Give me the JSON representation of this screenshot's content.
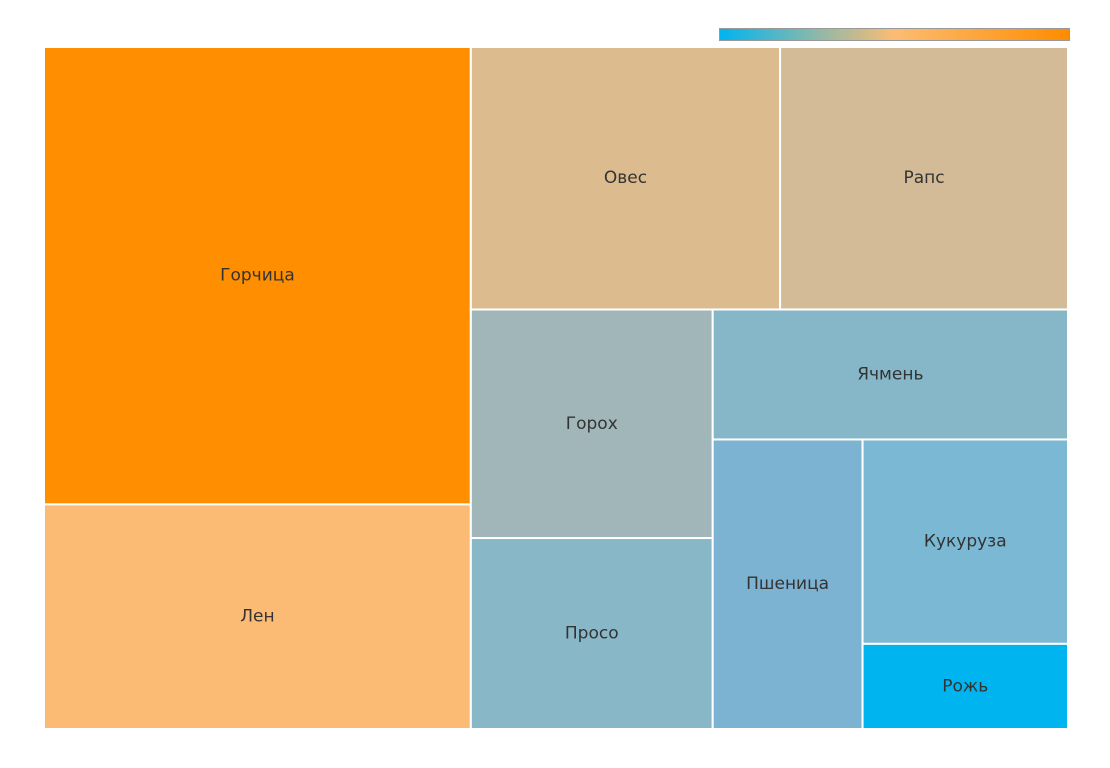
{
  "chart_data": {
    "type": "treemap",
    "categories": [
      "Горчица",
      "Лен",
      "Овес",
      "Рапс",
      "Горох",
      "Просо",
      "Ячмень",
      "Пшеница",
      "Кукуруза",
      "Рожь"
    ],
    "values": [
      27.9,
      13.7,
      11.6,
      10.8,
      7.9,
      6.6,
      6.6,
      6.2,
      6.0,
      2.5
    ],
    "colors": [
      "#ff8f00",
      "#fbbb75",
      "#dcbb8e",
      "#d2bb96",
      "#a0b6b8",
      "#88b7c8",
      "#86b7c9",
      "#7db3d2",
      "#7ab8d4",
      "#00b4f0"
    ],
    "colorscale": [
      "#00b4f0",
      "#fbbc72",
      "#ff8c00"
    ]
  }
}
